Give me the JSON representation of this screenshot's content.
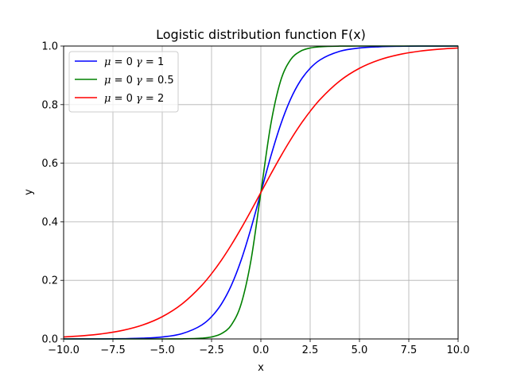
{
  "chart_data": {
    "type": "line",
    "title": "Logistic distribution function F(x)",
    "xlabel": "x",
    "ylabel": "y",
    "xlim": [
      -10,
      10
    ],
    "ylim": [
      0,
      1
    ],
    "grid": true,
    "legend_position": "top-left",
    "x_ticks": [
      -10,
      -7.5,
      -5,
      -2.5,
      0,
      2.5,
      5,
      7.5,
      10
    ],
    "x_tick_labels": [
      "−10.0",
      "−7.5",
      "−5.0",
      "−2.5",
      "0.0",
      "2.5",
      "5.0",
      "7.5",
      "10.0"
    ],
    "y_ticks": [
      0,
      0.2,
      0.4,
      0.6,
      0.8,
      1.0
    ],
    "y_tick_labels": [
      "0.0",
      "0.2",
      "0.4",
      "0.6",
      "0.8",
      "1.0"
    ],
    "x": [
      -10,
      -9,
      -8,
      -7,
      -6,
      -5,
      -4,
      -3,
      -2.5,
      -2,
      -1.5,
      -1,
      -0.5,
      0,
      0.5,
      1,
      1.5,
      2,
      2.5,
      3,
      4,
      5,
      6,
      7,
      8,
      9,
      10
    ],
    "series": [
      {
        "name": "μ = 0 γ = 1",
        "name_parts": {
          "mu_sym": "μ",
          "mu_val": " = 0 ",
          "gamma_sym": "γ",
          "gamma_val": " = 1"
        },
        "color": "#0000ff",
        "values": [
          0.0,
          0.0001,
          0.0003,
          0.0009,
          0.0025,
          0.0067,
          0.018,
          0.0474,
          0.0759,
          0.1192,
          0.1824,
          0.2689,
          0.3775,
          0.5,
          0.6225,
          0.7311,
          0.8176,
          0.8808,
          0.9241,
          0.9526,
          0.982,
          0.9933,
          0.9975,
          0.9991,
          0.9997,
          0.9999,
          1.0
        ]
      },
      {
        "name": "μ = 0 γ = 0.5",
        "name_parts": {
          "mu_sym": "μ",
          "mu_val": " = 0 ",
          "gamma_sym": "γ",
          "gamma_val": " = 0.5"
        },
        "color": "#008000",
        "values": [
          0.0,
          0.0,
          0.0,
          0.0,
          0.0,
          0.0,
          0.0003,
          0.0025,
          0.0067,
          0.018,
          0.0474,
          0.1192,
          0.2689,
          0.5,
          0.7311,
          0.8808,
          0.9526,
          0.982,
          0.9933,
          0.9975,
          0.9997,
          1.0,
          1.0,
          1.0,
          1.0,
          1.0,
          1.0
        ]
      },
      {
        "name": "μ = 0 γ = 2",
        "name_parts": {
          "mu_sym": "μ",
          "mu_val": " = 0 ",
          "gamma_sym": "γ",
          "gamma_val": " = 2"
        },
        "color": "#ff0000",
        "values": [
          0.0067,
          0.011,
          0.018,
          0.0293,
          0.0474,
          0.0759,
          0.1192,
          0.1824,
          0.2227,
          0.2689,
          0.3208,
          0.3775,
          0.4378,
          0.5,
          0.5622,
          0.6225,
          0.6792,
          0.7311,
          0.7773,
          0.8176,
          0.8808,
          0.9241,
          0.9526,
          0.9707,
          0.982,
          0.989,
          0.9933
        ]
      }
    ]
  }
}
